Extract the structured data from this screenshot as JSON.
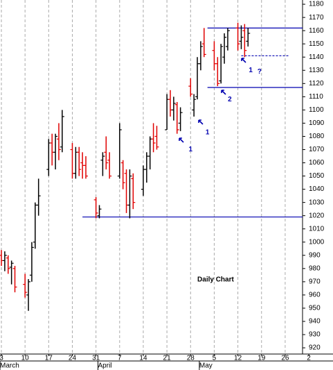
{
  "chart_data": {
    "type": "ohlc",
    "title": "Daily Chart",
    "x": [
      0,
      1,
      2,
      3,
      4,
      7,
      8,
      9,
      10,
      11,
      14,
      15,
      16,
      17,
      18,
      21,
      22,
      23,
      24,
      25,
      28,
      29,
      30,
      31,
      32,
      35,
      36,
      37,
      38,
      39,
      42,
      43,
      44,
      45,
      46,
      49,
      50,
      51,
      52,
      53,
      56,
      57,
      58,
      59,
      60,
      63,
      64,
      65,
      66,
      67,
      70,
      71,
      72,
      73
    ],
    "open": [
      990,
      986,
      988,
      981,
      980,
      968,
      960,
      975,
      1000,
      1028,
      1055,
      1075,
      1068,
      1078,
      1072,
      1070,
      1052,
      1068,
      1060,
      1058,
      1032,
      1020,
      1062,
      1068,
      1062,
      1050,
      1060,
      1052,
      1028,
      1048,
      1040,
      1055,
      1065,
      1078,
      1080,
      1085,
      1108,
      1100,
      1104,
      1090,
      1118,
      1100,
      1110,
      1135,
      1150,
      1145,
      1135,
      1122,
      1140,
      1148,
      1162,
      1152,
      1160,
      1152
    ],
    "high": [
      994,
      993,
      990,
      986,
      982,
      976,
      972,
      1000,
      1030,
      1048,
      1078,
      1082,
      1082,
      1090,
      1100,
      1075,
      1072,
      1072,
      1068,
      1065,
      1034,
      1028,
      1068,
      1080,
      1068,
      1090,
      1062,
      1055,
      1055,
      1052,
      1058,
      1068,
      1080,
      1090,
      1088,
      1112,
      1115,
      1110,
      1106,
      1102,
      1124,
      1112,
      1140,
      1152,
      1162,
      1152,
      1140,
      1150,
      1158,
      1162,
      1166,
      1164,
      1165,
      1162
    ],
    "low": [
      982,
      978,
      976,
      968,
      962,
      958,
      948,
      970,
      995,
      1020,
      1050,
      1058,
      1055,
      1062,
      1068,
      1048,
      1048,
      1050,
      1048,
      1048,
      1018,
      1018,
      1050,
      1055,
      1048,
      1048,
      1040,
      1022,
      1018,
      1025,
      1035,
      1045,
      1055,
      1068,
      1070,
      1085,
      1095,
      1092,
      1082,
      1084,
      1110,
      1095,
      1108,
      1130,
      1140,
      1130,
      1118,
      1120,
      1135,
      1145,
      1145,
      1146,
      1140,
      1148
    ],
    "close": [
      986,
      990,
      980,
      984,
      966,
      962,
      970,
      996,
      1028,
      1035,
      1075,
      1068,
      1080,
      1070,
      1095,
      1052,
      1068,
      1055,
      1058,
      1050,
      1022,
      1025,
      1065,
      1060,
      1050,
      1085,
      1045,
      1028,
      1050,
      1030,
      1055,
      1065,
      1078,
      1075,
      1072,
      1108,
      1100,
      1105,
      1085,
      1098,
      1112,
      1108,
      1135,
      1148,
      1142,
      1135,
      1120,
      1148,
      1155,
      1160,
      1150,
      1155,
      1145,
      1158
    ],
    "up_color": "#000000",
    "down_color": "#e00000",
    "xlim": [
      -0.41,
      89.14
    ],
    "ylim": [
      915.3,
      1183.2
    ],
    "xticks": [
      {
        "value": 0,
        "label": "3"
      },
      {
        "value": 7,
        "label": "10"
      },
      {
        "value": 14,
        "label": "17"
      },
      {
        "value": 21,
        "label": "24"
      },
      {
        "value": 28,
        "label": "31"
      },
      {
        "value": 35,
        "label": "7"
      },
      {
        "value": 42,
        "label": "14"
      },
      {
        "value": 49,
        "label": "21"
      },
      {
        "value": 56,
        "label": "28"
      },
      {
        "value": 63,
        "label": "5"
      },
      {
        "value": 70,
        "label": "12"
      },
      {
        "value": 77,
        "label": "19"
      },
      {
        "value": 84,
        "label": "26"
      },
      {
        "value": 91,
        "label": "2"
      }
    ],
    "months": [
      {
        "value": 0,
        "label": "March"
      },
      {
        "value": 29,
        "label": "April"
      },
      {
        "value": 59,
        "label": "May"
      }
    ],
    "yticks": [
      920,
      930,
      940,
      950,
      960,
      970,
      980,
      990,
      1000,
      1010,
      1020,
      1030,
      1040,
      1050,
      1060,
      1070,
      1080,
      1090,
      1100,
      1110,
      1120,
      1130,
      1140,
      1150,
      1160,
      1170,
      1180
    ],
    "hlines": [
      {
        "value": 1162,
        "from": 61,
        "to": 89.14,
        "dashed": false
      },
      {
        "value": 1117,
        "from": 61,
        "to": 89.14,
        "dashed": false
      },
      {
        "value": 1019,
        "from": 24,
        "to": 89.14,
        "dashed": false
      },
      {
        "value": 1141,
        "from": 71,
        "to": 85,
        "dashed": true
      }
    ],
    "line_color": "#0000b0",
    "annotations": [
      {
        "text": "1",
        "x": 56,
        "y": 1070
      },
      {
        "text": "1",
        "x": 61,
        "y": 1083
      },
      {
        "text": "2",
        "x": 67.6,
        "y": 1108
      },
      {
        "text": "1",
        "x": 73.8,
        "y": 1130
      },
      {
        "text": "?",
        "x": 76.4,
        "y": 1129
      }
    ],
    "title_pos": {
      "x": 58,
      "y": 971.5
    }
  }
}
